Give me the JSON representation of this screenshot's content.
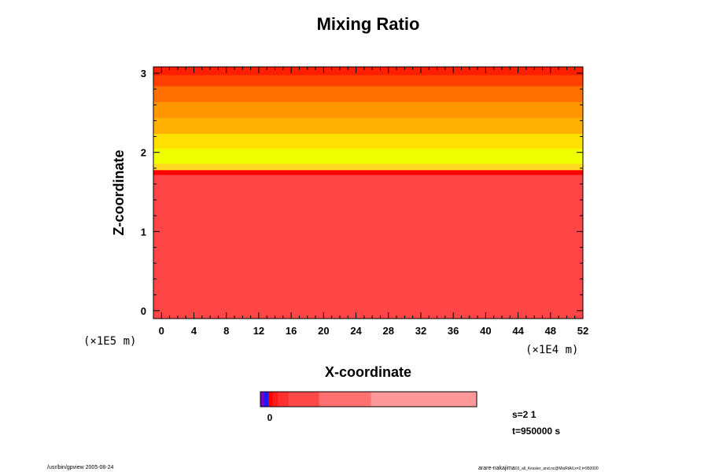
{
  "chart_data": {
    "type": "heatmap",
    "title": "Mixing Ratio",
    "xlabel": "X-coordinate",
    "ylabel": "Z-coordinate",
    "x_unit": "(×1E4 m)",
    "y_unit": "(×1E5 m)",
    "x_ticks": [
      0,
      4,
      8,
      12,
      16,
      20,
      24,
      28,
      32,
      36,
      40,
      44,
      48,
      52
    ],
    "x_tick_labels": [
      "0",
      "4",
      "8",
      "12",
      "16",
      "20",
      "24",
      "28",
      "32",
      "36",
      "40",
      "44",
      "48",
      "52"
    ],
    "y_ticks": [
      0,
      1,
      2,
      3
    ],
    "y_tick_labels": [
      "0",
      "1",
      "2",
      "3"
    ],
    "xlim": [
      -1,
      52
    ],
    "ylim": [
      -0.1,
      3.08
    ],
    "grid": false,
    "layers": [
      {
        "z0": -0.1,
        "z1": 1.72,
        "color": "#ff4545"
      },
      {
        "z0": 1.72,
        "z1": 1.78,
        "color": "#ff0000"
      },
      {
        "z0": 1.78,
        "z1": 1.86,
        "color": "#ffd820"
      },
      {
        "z0": 1.86,
        "z1": 2.05,
        "color": "#f0ff00"
      },
      {
        "z0": 2.05,
        "z1": 2.24,
        "color": "#ffe000"
      },
      {
        "z0": 2.24,
        "z1": 2.44,
        "color": "#ffb000"
      },
      {
        "z0": 2.44,
        "z1": 2.64,
        "color": "#ff9600"
      },
      {
        "z0": 2.64,
        "z1": 2.84,
        "color": "#ff7000"
      },
      {
        "z0": 2.84,
        "z1": 2.98,
        "color": "#ff4000"
      },
      {
        "z0": 2.98,
        "z1": 3.08,
        "color": "#ff1e00"
      }
    ],
    "colorbar": {
      "segments": [
        {
          "frac": 0.018,
          "color": "#7a00c8"
        },
        {
          "frac": 0.02,
          "color": "#1a1aff"
        },
        {
          "frac": 0.018,
          "color": "#ff0000"
        },
        {
          "frac": 0.025,
          "color": "#ff1a1a"
        },
        {
          "frac": 0.05,
          "color": "#ff3030"
        },
        {
          "frac": 0.14,
          "color": "#ff4848"
        },
        {
          "frac": 0.24,
          "color": "#ff7070"
        },
        {
          "frac": 0.489,
          "color": "#ff9898"
        }
      ],
      "tick_label": "0"
    }
  },
  "info": {
    "s_label": "s=2 1",
    "t_label": "t=950000 s"
  },
  "footer": {
    "left": "/usr/bin/gpview 2005-08-24",
    "right": "arare-nakajima",
    "right_small": "03_all_Kessler_and.nc@MixRtAll,x=2,t=950000"
  }
}
